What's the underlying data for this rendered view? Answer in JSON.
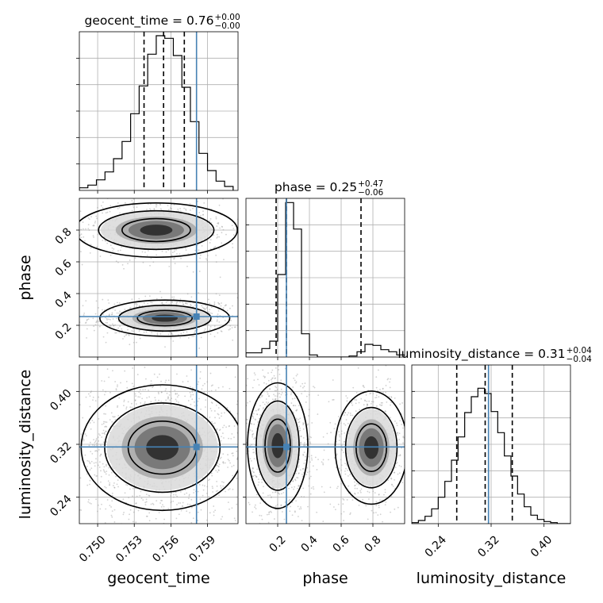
{
  "chart_data": {
    "type": "corner",
    "parameters": [
      "geocent_time",
      "phase",
      "luminosity_distance"
    ],
    "truths": {
      "geocent_time": 0.7581,
      "phase": 0.255,
      "luminosity_distance": 0.316
    },
    "diagonal": [
      {
        "param": "geocent_time",
        "title_label": "geocent_time",
        "title_value": "0.76",
        "title_plus": "+0.00",
        "title_minus": "−0.00",
        "quantiles": [
          0.7538,
          0.7554,
          0.7571
        ],
        "xlim": [
          0.7485,
          0.7615
        ],
        "bins": [
          0.7485,
          0.7492,
          0.7499,
          0.7506,
          0.7513,
          0.752,
          0.7527,
          0.7534,
          0.7541,
          0.7548,
          0.7555,
          0.7562,
          0.7569,
          0.7576,
          0.7583,
          0.759,
          0.7597,
          0.7604,
          0.7611
        ],
        "counts": [
          2,
          4,
          8,
          14,
          24,
          37,
          58,
          79,
          103,
          117,
          115,
          102,
          78,
          52,
          28,
          15,
          7,
          3
        ],
        "ymax": 120,
        "ticks": []
      },
      {
        "param": "phase",
        "title_label": "phase",
        "title_value": "0.25",
        "title_plus": "+0.47",
        "title_minus": "−0.06",
        "quantiles": [
          0.19,
          0.255,
          0.725
        ],
        "xlim": [
          0.0,
          1.0
        ],
        "bins": [
          0.0,
          0.05,
          0.1,
          0.15,
          0.2,
          0.25,
          0.3,
          0.35,
          0.4,
          0.45,
          0.5,
          0.55,
          0.6,
          0.65,
          0.7,
          0.75,
          0.8,
          0.85,
          0.9,
          0.95,
          1.0
        ],
        "counts": [
          4,
          4,
          8,
          15,
          78,
          146,
          121,
          22,
          2,
          0,
          0,
          0,
          0,
          1,
          5,
          12,
          11,
          7,
          5,
          2
        ],
        "ymax": 150,
        "ticks": []
      },
      {
        "param": "luminosity_distance",
        "title_label": "luminosity_distance",
        "title_value": "0.31",
        "title_plus": "+0.04",
        "title_minus": "−0.04",
        "quantiles": [
          0.268,
          0.311,
          0.352
        ],
        "xlim": [
          0.2,
          0.44
        ],
        "bins": [
          0.2,
          0.21,
          0.22,
          0.23,
          0.24,
          0.25,
          0.26,
          0.27,
          0.28,
          0.29,
          0.3,
          0.31,
          0.32,
          0.33,
          0.34,
          0.35,
          0.36,
          0.37,
          0.38,
          0.39,
          0.4,
          0.41,
          0.42,
          0.43,
          0.44
        ],
        "counts": [
          1,
          3,
          7,
          14,
          25,
          40,
          60,
          82,
          105,
          120,
          128,
          123,
          106,
          86,
          64,
          45,
          28,
          16,
          8,
          4,
          2,
          1,
          0,
          0
        ],
        "ymax": 150,
        "ticks": []
      }
    ],
    "pairs": [
      {
        "x": "geocent_time",
        "y": "phase",
        "xlim": [
          0.7485,
          0.7615
        ],
        "ylim": [
          0.0,
          1.0
        ],
        "yticks": [
          "0.2",
          "0.4",
          "0.6",
          "0.8"
        ],
        "ytick_values": [
          0.2,
          0.4,
          0.6,
          0.8
        ],
        "blobs": [
          {
            "cx": 0.7555,
            "cy": 0.245,
            "rx": 0.0028,
            "ry": 0.06
          },
          {
            "cx": 0.7548,
            "cy": 0.8,
            "rx": 0.0035,
            "ry": 0.09
          }
        ]
      },
      {
        "x": "geocent_time",
        "y": "luminosity_distance",
        "xlim": [
          0.7485,
          0.7615
        ],
        "ylim": [
          0.2,
          0.44
        ],
        "yticks": [
          "0.24",
          "0.32",
          "0.40"
        ],
        "ytick_values": [
          0.24,
          0.32,
          0.4
        ],
        "blobs": [
          {
            "cx": 0.7553,
            "cy": 0.315,
            "rx": 0.0035,
            "ry": 0.05
          }
        ]
      },
      {
        "x": "phase",
        "y": "luminosity_distance",
        "xlim": [
          0.0,
          1.0
        ],
        "ylim": [
          0.2,
          0.44
        ],
        "yticks": [],
        "ytick_values": [],
        "blobs": [
          {
            "cx": 0.2,
            "cy": 0.318,
            "rx": 0.1,
            "ry": 0.05
          },
          {
            "cx": 0.79,
            "cy": 0.315,
            "rx": 0.12,
            "ry": 0.045
          }
        ]
      }
    ],
    "xticks": {
      "geocent_time": {
        "labels": [
          "0.750",
          "0.753",
          "0.756",
          "0.759"
        ],
        "values": [
          0.75,
          0.753,
          0.756,
          0.759
        ]
      },
      "phase": {
        "labels": [
          "0.2",
          "0.4",
          "0.6",
          "0.8"
        ],
        "values": [
          0.2,
          0.4,
          0.6,
          0.8
        ]
      },
      "luminosity_distance": {
        "labels": [
          "0.24",
          "0.32",
          "0.40"
        ],
        "values": [
          0.24,
          0.32,
          0.4
        ]
      }
    },
    "axis_labels": {
      "x": [
        "geocent_time",
        "phase",
        "luminosity_distance"
      ],
      "y": [
        "phase",
        "luminosity_distance"
      ]
    },
    "colors": {
      "truth": "#4682b4",
      "hist": "#000000",
      "grid": "#b0b0b0",
      "points": "#9a9a9a"
    },
    "grid": true,
    "legend": "none"
  }
}
